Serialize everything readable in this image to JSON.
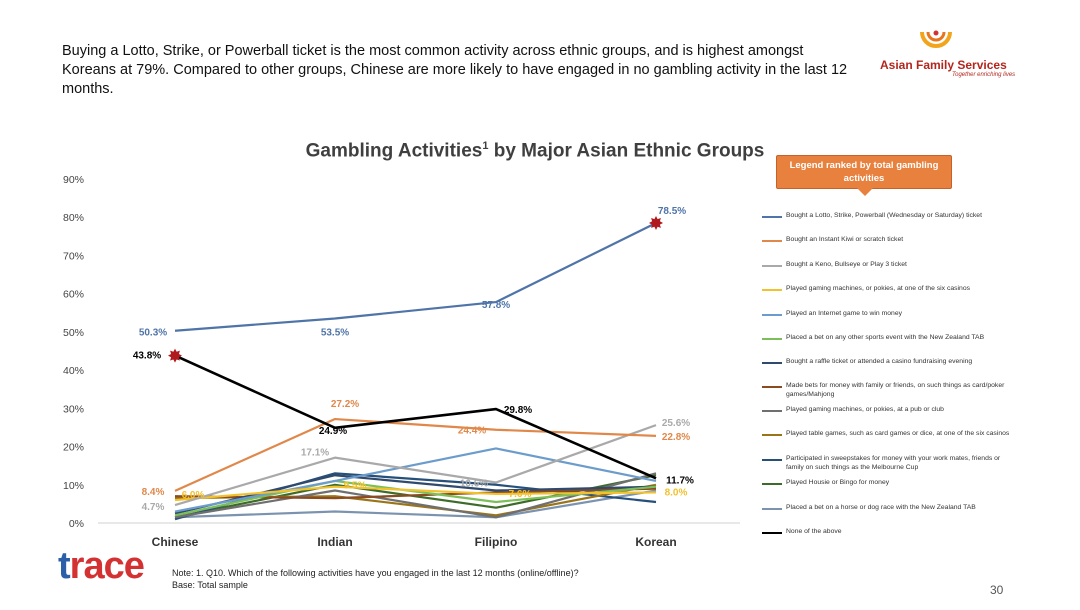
{
  "headline": "Buying a Lotto, Strike, or Powerball ticket is the most common activity across ethnic groups, and is highest amongst Koreans at 79%. Compared to other groups, Chinese are more likely to have engaged in no gambling activity in the last 12 months.",
  "logo": {
    "name": "Asian Family Services",
    "tagline": "Together enriching lives",
    "color": "#b3261e",
    "ring_color": "#f2a51b"
  },
  "callout": "Legend ranked by total gambling activities",
  "footer": {
    "note": "Note: 1. Q10. Which of the following activities have you engaged in the last 12 months (online/offline)?",
    "base": "Base: Total sample",
    "page": "30",
    "brand": {
      "part1": "t",
      "part2": "race"
    }
  },
  "chart_data": {
    "type": "line",
    "title": "Gambling Activities",
    "title_sup": "1",
    "title_suffix": " by Major Asian Ethnic Groups",
    "categories": [
      "Chinese",
      "Indian",
      "Filipino",
      "Korean"
    ],
    "ylim": [
      0,
      90
    ],
    "yticks": [
      "0%",
      "10%",
      "20%",
      "30%",
      "40%",
      "50%",
      "60%",
      "70%",
      "80%",
      "90%"
    ],
    "grid": false,
    "legend_position": "right",
    "series": [
      {
        "name": "Bought a Lotto, Strike, Powerball (Wednesday or Saturday) ticket",
        "color": "#4f74a8",
        "values": [
          50.3,
          53.5,
          57.8,
          78.5
        ]
      },
      {
        "name": "Bought an Instant Kiwi or scratch ticket",
        "color": "#e0884a",
        "values": [
          8.4,
          27.2,
          24.4,
          22.8
        ]
      },
      {
        "name": "Bought a Keno, Bullseye or Play 3 ticket",
        "color": "#a9a9a9",
        "values": [
          4.7,
          17.1,
          10.6,
          25.6
        ]
      },
      {
        "name": "Played gaming machines, or pokies, at one of the six casinos",
        "color": "#f2c12e",
        "values": [
          6.0,
          9.5,
          7.6,
          8.0
        ]
      },
      {
        "name": "Played an Internet game to win money",
        "color": "#6c9ccc",
        "values": [
          3.0,
          11.0,
          19.5,
          11.0
        ]
      },
      {
        "name": "Placed a bet on any other sports event with the New Zealand TAB",
        "color": "#7cbf5a",
        "values": [
          2.0,
          11.0,
          5.5,
          9.5
        ]
      },
      {
        "name": "Bought a raffle ticket or attended a casino fundraising evening",
        "color": "#2f4a6d",
        "values": [
          2.5,
          12.5,
          8.5,
          9.5
        ]
      },
      {
        "name": "Made bets for money with family or friends, on such things as card/poker games/Mahjong",
        "color": "#8a4a22",
        "values": [
          7.0,
          6.5,
          8.0,
          9.0
        ]
      },
      {
        "name": "Played gaming machines, or pokies, at a pub or club",
        "color": "#6f6f6f",
        "values": [
          1.5,
          8.5,
          1.5,
          13.0
        ]
      },
      {
        "name": "Played table games, such as card games or dice, at one of the six casinos",
        "color": "#9b7418",
        "values": [
          6.5,
          7.0,
          2.0,
          10.0
        ]
      },
      {
        "name": "Participated in sweepstakes for money with your work mates, friends or family on such things as the Melbourne Cup",
        "color": "#26507a",
        "values": [
          1.0,
          13.0,
          10.0,
          5.5
        ]
      },
      {
        "name": "Played Housie or Bingo for money",
        "color": "#3e6b2a",
        "values": [
          1.5,
          10.0,
          4.0,
          12.5
        ]
      },
      {
        "name": "Placed a bet on a horse or dog race with the New Zealand TAB",
        "color": "#7c93b0",
        "values": [
          1.5,
          3.0,
          1.5,
          8.5
        ]
      },
      {
        "name": "None of the above",
        "color": "#000000",
        "values": [
          43.8,
          24.9,
          29.8,
          11.7
        ]
      }
    ],
    "data_labels": [
      {
        "series": 0,
        "i": 0,
        "text": "50.3%"
      },
      {
        "series": 0,
        "i": 1,
        "text": "53.5%"
      },
      {
        "series": 0,
        "i": 2,
        "text": "57.8%"
      },
      {
        "series": 0,
        "i": 3,
        "text": "78.5%"
      },
      {
        "series": 1,
        "i": 0,
        "text": "8.4%"
      },
      {
        "series": 1,
        "i": 1,
        "text": "27.2%"
      },
      {
        "series": 1,
        "i": 2,
        "text": "24.4%"
      },
      {
        "series": 1,
        "i": 3,
        "text": "22.8%"
      },
      {
        "series": 2,
        "i": 0,
        "text": "4.7%"
      },
      {
        "series": 2,
        "i": 1,
        "text": "17.1%"
      },
      {
        "series": 2,
        "i": 2,
        "text": "10.6%"
      },
      {
        "series": 2,
        "i": 3,
        "text": "25.6%"
      },
      {
        "series": 3,
        "i": 0,
        "text": "6.0%"
      },
      {
        "series": 3,
        "i": 1,
        "text": "9.5%"
      },
      {
        "series": 3,
        "i": 2,
        "text": "7.6%"
      },
      {
        "series": 3,
        "i": 3,
        "text": "8.0%"
      },
      {
        "series": 13,
        "i": 0,
        "text": "43.8%"
      },
      {
        "series": 13,
        "i": 1,
        "text": "24.9%"
      },
      {
        "series": 13,
        "i": 2,
        "text": "29.8%"
      },
      {
        "series": 13,
        "i": 3,
        "text": "11.7%"
      }
    ],
    "highlights": [
      {
        "series": 0,
        "i": 3
      },
      {
        "series": 13,
        "i": 0
      }
    ]
  }
}
